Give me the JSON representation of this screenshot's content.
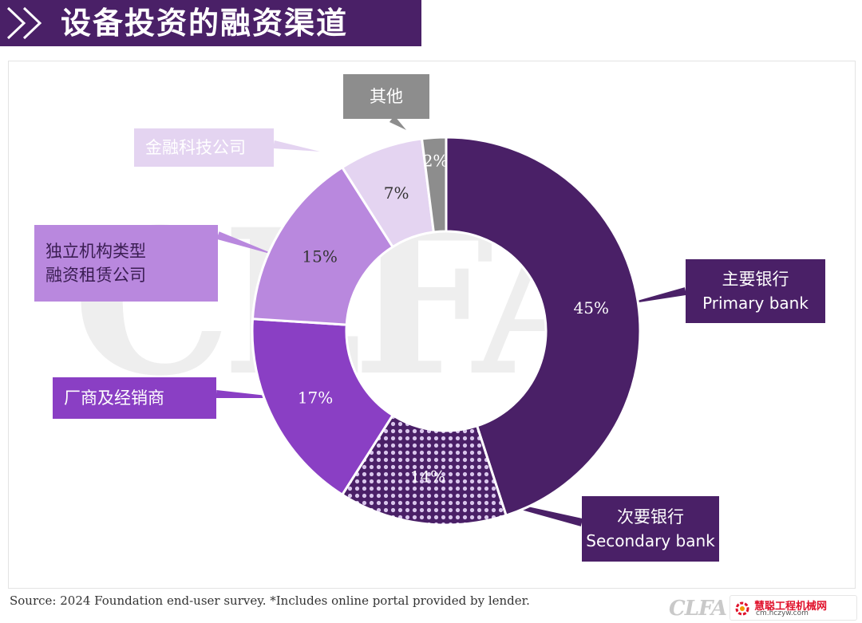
{
  "title": "设备投资的融资渠道",
  "chart_data": {
    "type": "pie",
    "variant": "donut",
    "start_angle_deg": 0,
    "direction": "clockwise",
    "slices": [
      {
        "key": "primary",
        "value": 45,
        "label": "45%",
        "name_cn": "主要银行",
        "name_en": "Primary bank",
        "color": "#4a2067",
        "pattern": "none",
        "text": "light"
      },
      {
        "key": "secondary",
        "value": 14,
        "label": "14%",
        "name_cn": "次要银行",
        "name_en": "Secondary bank",
        "color": "#4a2067",
        "pattern": "dots",
        "text": "light"
      },
      {
        "key": "oem",
        "value": 17,
        "label": "17%",
        "name_cn": "厂商及经销商",
        "name_en": "",
        "color": "#8a3fc4",
        "pattern": "none",
        "text": "light"
      },
      {
        "key": "independent",
        "value": 15,
        "label": "15%",
        "name_cn": "独立机构类型\n融资租赁公司",
        "name_en": "",
        "color": "#b988de",
        "pattern": "none",
        "text": "dark"
      },
      {
        "key": "fintech",
        "value": 7,
        "label": "7%",
        "name_cn": "金融科技公司",
        "name_en": "",
        "color": "#e4d4f1",
        "pattern": "none",
        "text": "dark"
      },
      {
        "key": "other",
        "value": 2,
        "label": "2%",
        "name_cn": "其他",
        "name_en": "",
        "color": "#8d8d8d",
        "pattern": "none",
        "text": "light"
      }
    ]
  },
  "source_note": "Source: 2024 Foundation end-user survey. *Includes online portal provided by lender.",
  "logo_text": "CLFA",
  "watermark": {
    "icon": "gear-icon",
    "name": "慧聪工程机械网",
    "url": "cm.hczyw.com"
  }
}
